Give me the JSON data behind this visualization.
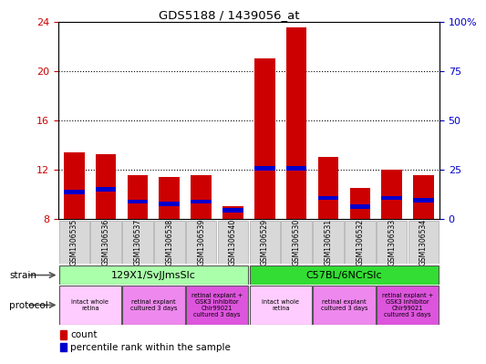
{
  "title": "GDS5188 / 1439056_at",
  "samples": [
    "GSM1306535",
    "GSM1306536",
    "GSM1306537",
    "GSM1306538",
    "GSM1306539",
    "GSM1306540",
    "GSM1306529",
    "GSM1306530",
    "GSM1306531",
    "GSM1306532",
    "GSM1306533",
    "GSM1306534"
  ],
  "count_values": [
    13.4,
    13.2,
    11.5,
    11.4,
    11.5,
    9.0,
    21.0,
    23.5,
    13.0,
    10.5,
    12.0,
    11.5
  ],
  "blue_bar_bottom": [
    10.0,
    10.2,
    9.2,
    9.0,
    9.2,
    8.5,
    11.9,
    11.9,
    9.5,
    8.8,
    9.5,
    9.3
  ],
  "blue_bar_top": [
    10.35,
    10.55,
    9.55,
    9.35,
    9.55,
    8.85,
    12.25,
    12.25,
    9.85,
    9.15,
    9.85,
    9.65
  ],
  "ylim_left": [
    8,
    24
  ],
  "ylim_right": [
    0,
    100
  ],
  "yticks_left": [
    8,
    12,
    16,
    20,
    24
  ],
  "yticks_right": [
    0,
    25,
    50,
    75,
    100
  ],
  "ytick_labels_right": [
    "0",
    "25",
    "50",
    "75",
    "100%"
  ],
  "bar_color": "#cc0000",
  "blue_color": "#0000cc",
  "strain_groups": [
    {
      "label": "129X1/SvJJmsSlc",
      "start": 0,
      "end": 6,
      "color": "#aaffaa"
    },
    {
      "label": "C57BL/6NCrSlc",
      "start": 6,
      "end": 12,
      "color": "#33dd33"
    }
  ],
  "protocol_groups": [
    {
      "label": "intact whole\nretina",
      "start": 0,
      "end": 2,
      "color": "#ffccff"
    },
    {
      "label": "retinal explant\ncultured 3 days",
      "start": 2,
      "end": 4,
      "color": "#ee88ee"
    },
    {
      "label": "retinal explant +\nGSK3 inhibitor\nChir99021\ncultured 3 days",
      "start": 4,
      "end": 6,
      "color": "#dd55dd"
    },
    {
      "label": "intact whole\nretina",
      "start": 6,
      "end": 8,
      "color": "#ffccff"
    },
    {
      "label": "retinal explant\ncultured 3 days",
      "start": 8,
      "end": 10,
      "color": "#ee88ee"
    },
    {
      "label": "retinal explant +\nGSK3 inhibitor\nChir99021\ncultured 3 days",
      "start": 10,
      "end": 12,
      "color": "#dd55dd"
    }
  ],
  "bar_width": 0.65,
  "background_color": "#ffffff",
  "xlabel_color": "#cc0000",
  "ylabel_right_color": "#0000cc",
  "sample_box_color": "#d8d8d8",
  "sample_box_edge": "#aaaaaa"
}
